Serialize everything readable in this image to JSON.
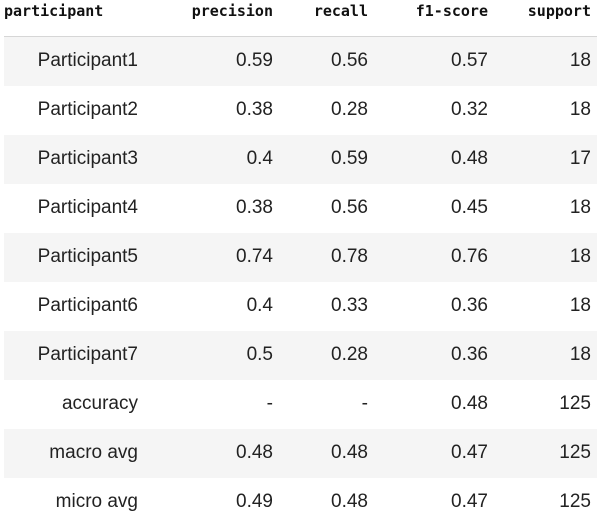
{
  "table": {
    "columns": [
      "participant",
      "precision",
      "recall",
      "f1-score",
      "support"
    ],
    "rows": [
      [
        "Participant1",
        "0.59",
        "0.56",
        "0.57",
        "18"
      ],
      [
        "Participant2",
        "0.38",
        "0.28",
        "0.32",
        "18"
      ],
      [
        "Participant3",
        "0.4",
        "0.59",
        "0.48",
        "17"
      ],
      [
        "Participant4",
        "0.38",
        "0.56",
        "0.45",
        "18"
      ],
      [
        "Participant5",
        "0.74",
        "0.78",
        "0.76",
        "18"
      ],
      [
        "Participant6",
        "0.4",
        "0.33",
        "0.36",
        "18"
      ],
      [
        "Participant7",
        "0.5",
        "0.28",
        "0.36",
        "18"
      ],
      [
        "accuracy",
        "-",
        "-",
        "0.48",
        "125"
      ],
      [
        "macro avg",
        "0.48",
        "0.48",
        "0.47",
        "125"
      ],
      [
        "micro avg",
        "0.49",
        "0.48",
        "0.47",
        "125"
      ]
    ]
  }
}
